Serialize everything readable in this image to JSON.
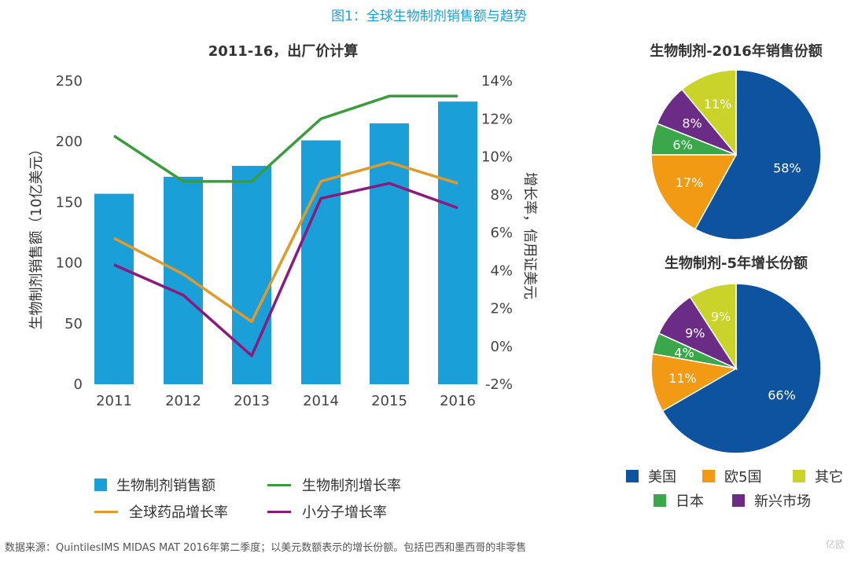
{
  "figure_title": "图1：全球生物制剂销售额与趋势",
  "source_note": "数据来源：QuintilesIMS MIDAS MAT 2016年第二季度；以美元数额表示的增长份额。包括巴西和墨西哥的非零售",
  "watermark": "亿欧",
  "colors": {
    "bar": "#1a9fd8",
    "bio_growth": "#3a9d3c",
    "global_growth": "#e09a2c",
    "small_molecule": "#8b1a7d",
    "usa": "#0e539f",
    "eu5": "#f39a14",
    "japan": "#3aa84a",
    "emerging": "#6b2c86",
    "other": "#c9d32a"
  },
  "chart_data": [
    {
      "type": "bar+line",
      "title": "2011-16，出厂价计算",
      "categories": [
        "2011",
        "2012",
        "2013",
        "2014",
        "2015",
        "2016"
      ],
      "ylabel": "生物制剂销售额（10亿美元）",
      "ylabel_right": "增长率，信用证美元",
      "ylim": [
        0,
        250
      ],
      "yticks": [
        "250",
        "200",
        "150",
        "100",
        "50",
        "0"
      ],
      "ylim_right": [
        -2,
        14
      ],
      "yticks_right": [
        "14%",
        "12%",
        "10%",
        "8%",
        "6%",
        "4%",
        "2%",
        "0%",
        "-2%"
      ],
      "bar_series": {
        "name": "生物制剂销售额",
        "values": [
          157,
          171,
          180,
          201,
          215,
          233
        ]
      },
      "line_series": [
        {
          "name": "生物制剂增长率",
          "color": "bio_growth",
          "values": [
            11.1,
            8.7,
            8.7,
            12.0,
            13.2,
            13.2
          ]
        },
        {
          "name": "全球药品增长率",
          "color": "global_growth",
          "values": [
            5.7,
            3.8,
            1.3,
            8.7,
            9.7,
            8.6
          ]
        },
        {
          "name": "小分子增长率",
          "color": "small_molecule",
          "values": [
            4.3,
            2.7,
            -0.5,
            7.8,
            8.6,
            7.3
          ]
        }
      ],
      "legend": [
        "生物制剂销售额",
        "生物制剂增长率",
        "全球药品增长率",
        "小分子增长率"
      ]
    },
    {
      "type": "pie",
      "title": "生物制剂-2016年销售份额",
      "labels": [
        "美国",
        "欧5国",
        "日本",
        "新兴市场",
        "其它"
      ],
      "values": [
        58,
        17,
        6,
        8,
        11
      ],
      "value_labels": [
        "58%",
        "17%",
        "6%",
        "8%",
        "11%"
      ]
    },
    {
      "type": "pie",
      "title": "生物制剂-5年增长份额",
      "labels": [
        "美国",
        "欧5国",
        "日本",
        "新兴市场",
        "其它"
      ],
      "values": [
        66,
        11,
        4,
        9,
        9
      ],
      "value_labels": [
        "66%",
        "11%",
        "4%",
        "9%",
        "9%"
      ]
    }
  ],
  "pie_legend": [
    "美国",
    "欧5国",
    "其它",
    "日本",
    "新兴市场"
  ]
}
